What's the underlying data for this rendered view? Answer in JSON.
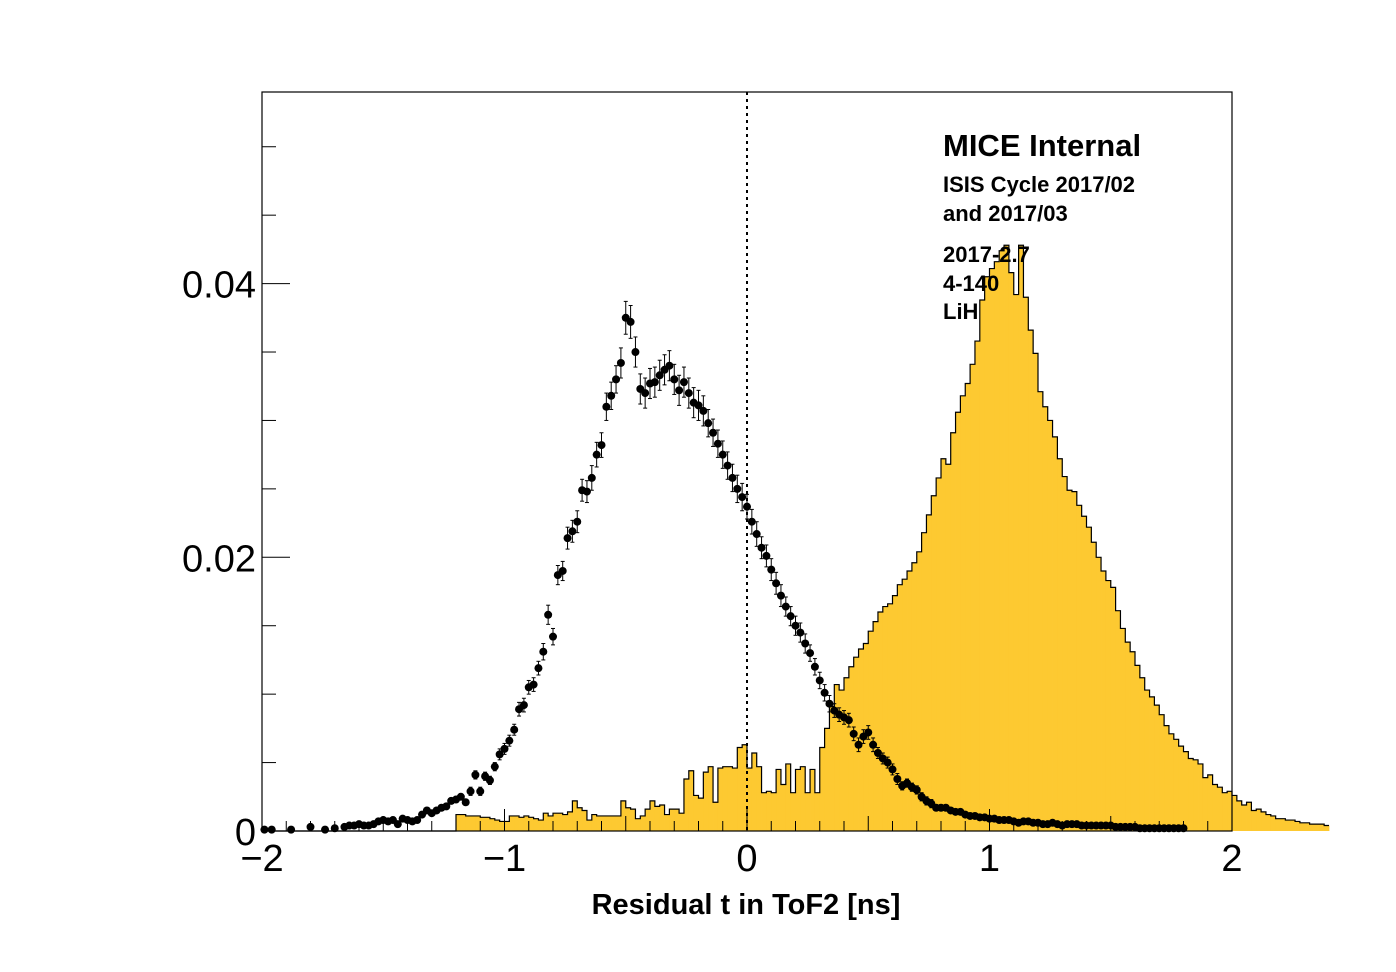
{
  "chart_data": {
    "type": "bar",
    "title": "",
    "xlabel": "Residual t in ToF2 [ns]",
    "ylabel": "",
    "xlim": [
      -2,
      2
    ],
    "ylim": [
      0,
      0.054
    ],
    "x_ticks": [
      -2,
      -1,
      0,
      1,
      2
    ],
    "x_tick_labels": [
      "−2",
      "−1",
      "0",
      "1",
      "2"
    ],
    "y_ticks": [
      0,
      0.02,
      0.04
    ],
    "y_tick_labels": [
      "0",
      "0.02",
      "0.04"
    ],
    "grid": false,
    "vertical_reference_line_x": 0,
    "annotations": {
      "title": "MICE Internal",
      "lines": [
        "ISIS Cycle 2017/02",
        "and 2017/03",
        "2017-2.7",
        "4-140",
        "LiH"
      ]
    },
    "series": [
      {
        "kind": "histogram",
        "fill_color": "#fdc931",
        "bin_width": 0.02,
        "x_start": -2,
        "values": [
          0,
          0,
          0,
          0,
          0,
          0,
          0,
          0,
          0,
          0,
          0,
          0,
          0,
          0,
          0,
          0,
          0,
          0,
          0,
          0,
          0,
          0,
          0,
          0,
          0,
          0,
          0,
          0,
          0,
          0,
          0,
          0,
          0,
          0,
          0,
          0,
          0,
          0,
          0,
          0,
          0.0012,
          0.0012,
          0.0011,
          0.0011,
          0.0011,
          0.001,
          0.001,
          0.0009,
          0.0008,
          0.0007,
          0.0007,
          0.0011,
          0.0011,
          0.001,
          0.0011,
          0.001,
          0.0009,
          0.0008,
          0.0013,
          0.0011,
          0.0013,
          0.0013,
          0.0012,
          0.0014,
          0.0022,
          0.0017,
          0.0015,
          0.0008,
          0.0012,
          0.0011,
          0.0011,
          0.0011,
          0.0011,
          0.0011,
          0.0022,
          0.0017,
          0.0016,
          0.0009,
          0.0011,
          0.0016,
          0.0022,
          0.0018,
          0.0019,
          0.0012,
          0.0016,
          0.0016,
          0.0013,
          0.0038,
          0.0044,
          0.0026,
          0.0024,
          0.0043,
          0.0047,
          0.0021,
          0.0046,
          0.0047,
          0.0047,
          0.0046,
          0.0061,
          0.0063,
          0.0046,
          0.0057,
          0.0047,
          0.0028,
          0.0029,
          0.0028,
          0.0045,
          0.0034,
          0.0049,
          0.0028,
          0.0045,
          0.0047,
          0.0028,
          0.0045,
          0.0028,
          0.0061,
          0.0075,
          0.0091,
          0.0107,
          0.0103,
          0.0112,
          0.012,
          0.0127,
          0.0133,
          0.0137,
          0.0146,
          0.0153,
          0.016,
          0.0164,
          0.0166,
          0.0172,
          0.018,
          0.0184,
          0.019,
          0.0196,
          0.0204,
          0.0218,
          0.0231,
          0.0245,
          0.0258,
          0.0272,
          0.0268,
          0.0291,
          0.0306,
          0.0318,
          0.0327,
          0.0341,
          0.0358,
          0.0388,
          0.0405,
          0.0411,
          0.0416,
          0.0424,
          0.0428,
          0.0408,
          0.0392,
          0.0428,
          0.039,
          0.0366,
          0.0349,
          0.0321,
          0.031,
          0.03,
          0.0288,
          0.0272,
          0.0259,
          0.0249,
          0.0248,
          0.0238,
          0.023,
          0.0222,
          0.0211,
          0.02,
          0.019,
          0.0183,
          0.0178,
          0.0161,
          0.0148,
          0.0138,
          0.0131,
          0.0121,
          0.0112,
          0.0103,
          0.0098,
          0.0092,
          0.0085,
          0.0077,
          0.0071,
          0.0067,
          0.0062,
          0.0058,
          0.0053,
          0.0052,
          0.0049,
          0.0039,
          0.0041,
          0.0034,
          0.0032,
          0.0028,
          0.0029,
          0.0026,
          0.0022,
          0.0019,
          0.0021,
          0.0015,
          0.0016,
          0.0014,
          0.0012,
          0.0011,
          0.0009,
          0.0009,
          0.0008,
          0.0008,
          0.0007,
          0.0006,
          0.0006,
          0.0005,
          0.0005,
          0.0005,
          0.0004
        ]
      },
      {
        "kind": "points_with_errors",
        "color": "#000000",
        "x": [
          -1.99,
          -1.96,
          -1.88,
          -1.8,
          -1.74,
          -1.7,
          -1.66,
          -1.64,
          -1.62,
          -1.6,
          -1.58,
          -1.56,
          -1.54,
          -1.52,
          -1.5,
          -1.48,
          -1.46,
          -1.44,
          -1.42,
          -1.4,
          -1.38,
          -1.36,
          -1.34,
          -1.32,
          -1.3,
          -1.28,
          -1.26,
          -1.24,
          -1.22,
          -1.2,
          -1.18,
          -1.16,
          -1.14,
          -1.12,
          -1.1,
          -1.08,
          -1.06,
          -1.04,
          -1.02,
          -1.0,
          -0.98,
          -0.96,
          -0.94,
          -0.92,
          -0.9,
          -0.88,
          -0.86,
          -0.84,
          -0.82,
          -0.8,
          -0.78,
          -0.76,
          -0.74,
          -0.72,
          -0.7,
          -0.68,
          -0.66,
          -0.64,
          -0.62,
          -0.6,
          -0.58,
          -0.56,
          -0.54,
          -0.52,
          -0.5,
          -0.48,
          -0.46,
          -0.44,
          -0.42,
          -0.4,
          -0.38,
          -0.36,
          -0.34,
          -0.32,
          -0.3,
          -0.28,
          -0.26,
          -0.24,
          -0.22,
          -0.2,
          -0.18,
          -0.16,
          -0.14,
          -0.12,
          -0.1,
          -0.08,
          -0.06,
          -0.04,
          -0.02,
          0.0,
          0.02,
          0.04,
          0.06,
          0.08,
          0.1,
          0.12,
          0.14,
          0.16,
          0.18,
          0.2,
          0.22,
          0.24,
          0.26,
          0.28,
          0.3,
          0.32,
          0.34,
          0.36,
          0.38,
          0.4,
          0.42,
          0.44,
          0.46,
          0.48,
          0.5,
          0.52,
          0.54,
          0.56,
          0.58,
          0.6,
          0.62,
          0.64,
          0.66,
          0.68,
          0.7,
          0.72,
          0.74,
          0.76,
          0.78,
          0.8,
          0.82,
          0.84,
          0.86,
          0.88,
          0.9,
          0.92,
          0.94,
          0.96,
          0.98,
          1.0,
          1.02,
          1.04,
          1.06,
          1.08,
          1.1,
          1.12,
          1.14,
          1.16,
          1.18,
          1.2,
          1.22,
          1.24,
          1.26,
          1.28,
          1.3,
          1.32,
          1.34,
          1.36,
          1.38,
          1.4,
          1.42,
          1.44,
          1.46,
          1.48,
          1.5,
          1.52,
          1.54,
          1.56,
          1.58,
          1.6,
          1.62,
          1.64,
          1.66,
          1.68,
          1.7,
          1.72,
          1.74,
          1.76,
          1.78,
          1.8
        ],
        "y": [
          0.0001,
          0.0001,
          0.0001,
          0.0003,
          0.0001,
          0.0002,
          0.0003,
          0.0004,
          0.0004,
          0.0005,
          0.0004,
          0.0004,
          0.0005,
          0.0007,
          0.0008,
          0.0007,
          0.0008,
          0.0005,
          0.0009,
          0.0008,
          0.0007,
          0.0008,
          0.0012,
          0.0015,
          0.0013,
          0.0015,
          0.0017,
          0.0018,
          0.0022,
          0.0023,
          0.0025,
          0.0021,
          0.0029,
          0.0041,
          0.0029,
          0.004,
          0.0037,
          0.0047,
          0.0056,
          0.006,
          0.0066,
          0.0074,
          0.0089,
          0.0092,
          0.0105,
          0.0107,
          0.0119,
          0.0131,
          0.0158,
          0.0142,
          0.0187,
          0.019,
          0.0214,
          0.0219,
          0.0226,
          0.0249,
          0.0248,
          0.0258,
          0.0275,
          0.0282,
          0.031,
          0.0318,
          0.033,
          0.0342,
          0.0375,
          0.0372,
          0.035,
          0.0323,
          0.032,
          0.0327,
          0.0328,
          0.0333,
          0.0337,
          0.034,
          0.033,
          0.0322,
          0.0328,
          0.032,
          0.0313,
          0.0311,
          0.0307,
          0.0298,
          0.0291,
          0.0283,
          0.0275,
          0.0267,
          0.0258,
          0.025,
          0.0244,
          0.0237,
          0.0226,
          0.0217,
          0.0207,
          0.0201,
          0.0191,
          0.0181,
          0.0172,
          0.0164,
          0.0157,
          0.015,
          0.0145,
          0.0137,
          0.013,
          0.012,
          0.011,
          0.0101,
          0.0093,
          0.0088,
          0.0085,
          0.0083,
          0.0081,
          0.0071,
          0.0063,
          0.0069,
          0.0072,
          0.0063,
          0.0057,
          0.0053,
          0.005,
          0.0045,
          0.0038,
          0.0033,
          0.0035,
          0.0032,
          0.003,
          0.0025,
          0.0022,
          0.002,
          0.0017,
          0.0017,
          0.0017,
          0.0015,
          0.0014,
          0.0014,
          0.0012,
          0.0011,
          0.0011,
          0.001,
          0.001,
          0.0009,
          0.0009,
          0.0008,
          0.0008,
          0.0008,
          0.0007,
          0.0006,
          0.0007,
          0.0007,
          0.0006,
          0.0006,
          0.0005,
          0.0005,
          0.0006,
          0.0005,
          0.0004,
          0.0005,
          0.0005,
          0.0005,
          0.0004,
          0.0004,
          0.0004,
          0.0004,
          0.0004,
          0.0004,
          0.0004,
          0.0003,
          0.0003,
          0.0003,
          0.0003,
          0.0003,
          0.0002,
          0.0002,
          0.0002,
          0.0002,
          0.0002,
          0.0002,
          0.0002,
          0.0002,
          0.0002,
          0.0002
        ],
        "yerr": [
          0.0001,
          0.0001,
          0.0001,
          0.0001,
          0.0001,
          0.0001,
          0.0001,
          0.0001,
          0.0001,
          0.0001,
          0.0001,
          0.0001,
          0.0001,
          0.0001,
          0.0001,
          0.0001,
          0.0001,
          0.0001,
          0.0001,
          0.0001,
          0.0001,
          0.0001,
          0.0002,
          0.0002,
          0.0002,
          0.0002,
          0.0002,
          0.0002,
          0.0002,
          0.0002,
          0.0002,
          0.0002,
          0.0003,
          0.0003,
          0.0003,
          0.0003,
          0.0003,
          0.0003,
          0.0004,
          0.0004,
          0.0004,
          0.0004,
          0.0005,
          0.0005,
          0.0005,
          0.0005,
          0.0005,
          0.0006,
          0.0007,
          0.0006,
          0.0007,
          0.0007,
          0.0008,
          0.0008,
          0.0008,
          0.0008,
          0.0008,
          0.0009,
          0.0009,
          0.0009,
          0.001,
          0.001,
          0.001,
          0.0011,
          0.0012,
          0.0012,
          0.0011,
          0.0011,
          0.0011,
          0.0011,
          0.0011,
          0.0011,
          0.0011,
          0.0011,
          0.0011,
          0.0011,
          0.0011,
          0.0011,
          0.0011,
          0.0011,
          0.0011,
          0.001,
          0.001,
          0.001,
          0.001,
          0.001,
          0.001,
          0.001,
          0.001,
          0.0009,
          0.0009,
          0.0009,
          0.0008,
          0.0008,
          0.0008,
          0.0008,
          0.0008,
          0.0007,
          0.0007,
          0.0007,
          0.0007,
          0.0007,
          0.0006,
          0.0006,
          0.0006,
          0.0006,
          0.0006,
          0.0005,
          0.0005,
          0.0005,
          0.0005,
          0.0005,
          0.0005,
          0.0005,
          0.0005,
          0.0005,
          0.0004,
          0.0004,
          0.0004,
          0.0004,
          0.0004,
          0.0003,
          0.0003,
          0.0003,
          0.0003,
          0.0003,
          0.0003,
          0.0003,
          0.0002,
          0.0002,
          0.0002,
          0.0002,
          0.0002,
          0.0002,
          0.0002,
          0.0002,
          0.0002,
          0.0002,
          0.0002,
          0.0002,
          0.0002,
          0.0002,
          0.0002,
          0.0002,
          0.0002,
          0.0001,
          0.0001,
          0.0001,
          0.0001,
          0.0001,
          0.0001,
          0.0001,
          0.0001,
          0.0001,
          0.0001,
          0.0001,
          0.0001,
          0.0001,
          0.0001,
          0.0001,
          0.0001,
          0.0001,
          0.0001,
          0.0001,
          0.0001,
          0.0001,
          0.0001,
          0.0001,
          0.0001,
          0.0001,
          0.0001,
          0.0001,
          0.0001,
          0.0001,
          0.0001,
          0.0001,
          0.0001,
          0.0001,
          0.0001,
          0.0001
        ]
      }
    ]
  }
}
